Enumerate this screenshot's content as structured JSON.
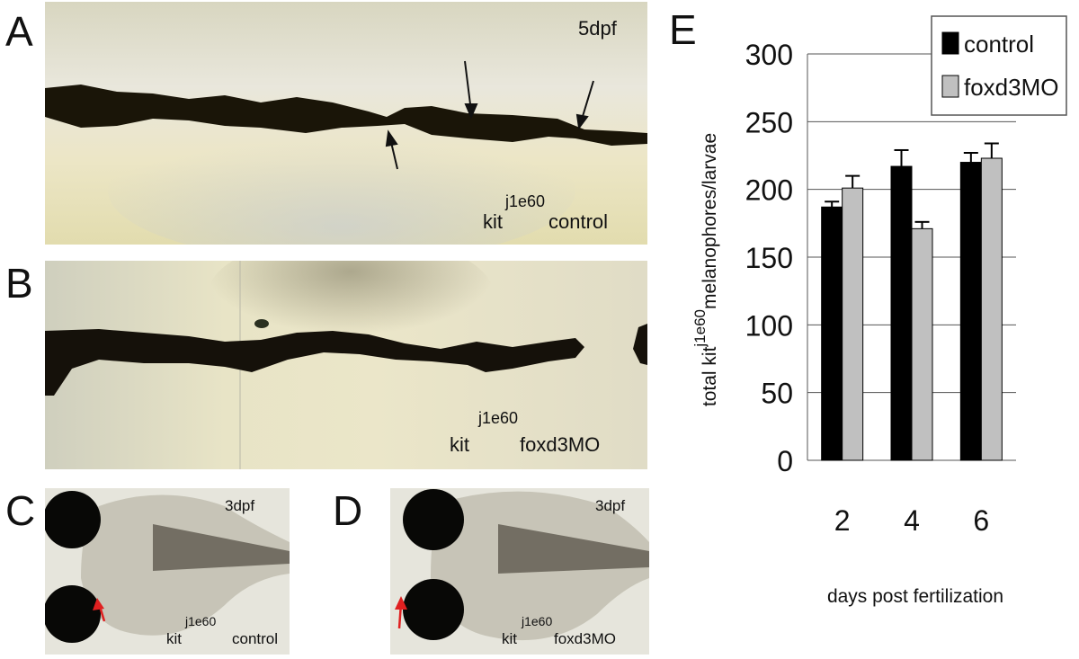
{
  "figure": {
    "panel_letters": {
      "a": "A",
      "b": "B",
      "c": "C",
      "d": "D",
      "e": "E"
    },
    "panel_a": {
      "stage": "5dpf",
      "genotype": "kit",
      "allele": "j1e60",
      "condition": "control"
    },
    "panel_b": {
      "genotype": "kit",
      "allele": "j1e60",
      "condition": "foxd3MO"
    },
    "panel_c": {
      "stage": "3dpf",
      "genotype": "kit",
      "allele": "j1e60",
      "condition": "control"
    },
    "panel_d": {
      "stage": "3dpf",
      "genotype": "kit",
      "allele": "j1e60",
      "condition": "foxd3MO"
    }
  },
  "colors": {
    "control": "#000000",
    "foxd3MO": "#c0c0c0",
    "arrow": "#e02020"
  },
  "chart_data": {
    "type": "bar",
    "categories": [
      "2",
      "4",
      "6"
    ],
    "series": [
      {
        "name": "control",
        "values": [
          187,
          217,
          220
        ],
        "errors": [
          4,
          12,
          7
        ]
      },
      {
        "name": "foxd3MO",
        "values": [
          201,
          171,
          223
        ],
        "errors": [
          9,
          5,
          11
        ]
      }
    ],
    "xlabel": "days post fertilization",
    "ylabel": {
      "prefix": "total kit",
      "superscript": "j1e60",
      "suffix": "melanophores/larvae"
    },
    "yticks": [
      0,
      50,
      100,
      150,
      200,
      250,
      300
    ],
    "ylim": [
      0,
      300
    ],
    "grid": true,
    "legend": "top-right"
  }
}
